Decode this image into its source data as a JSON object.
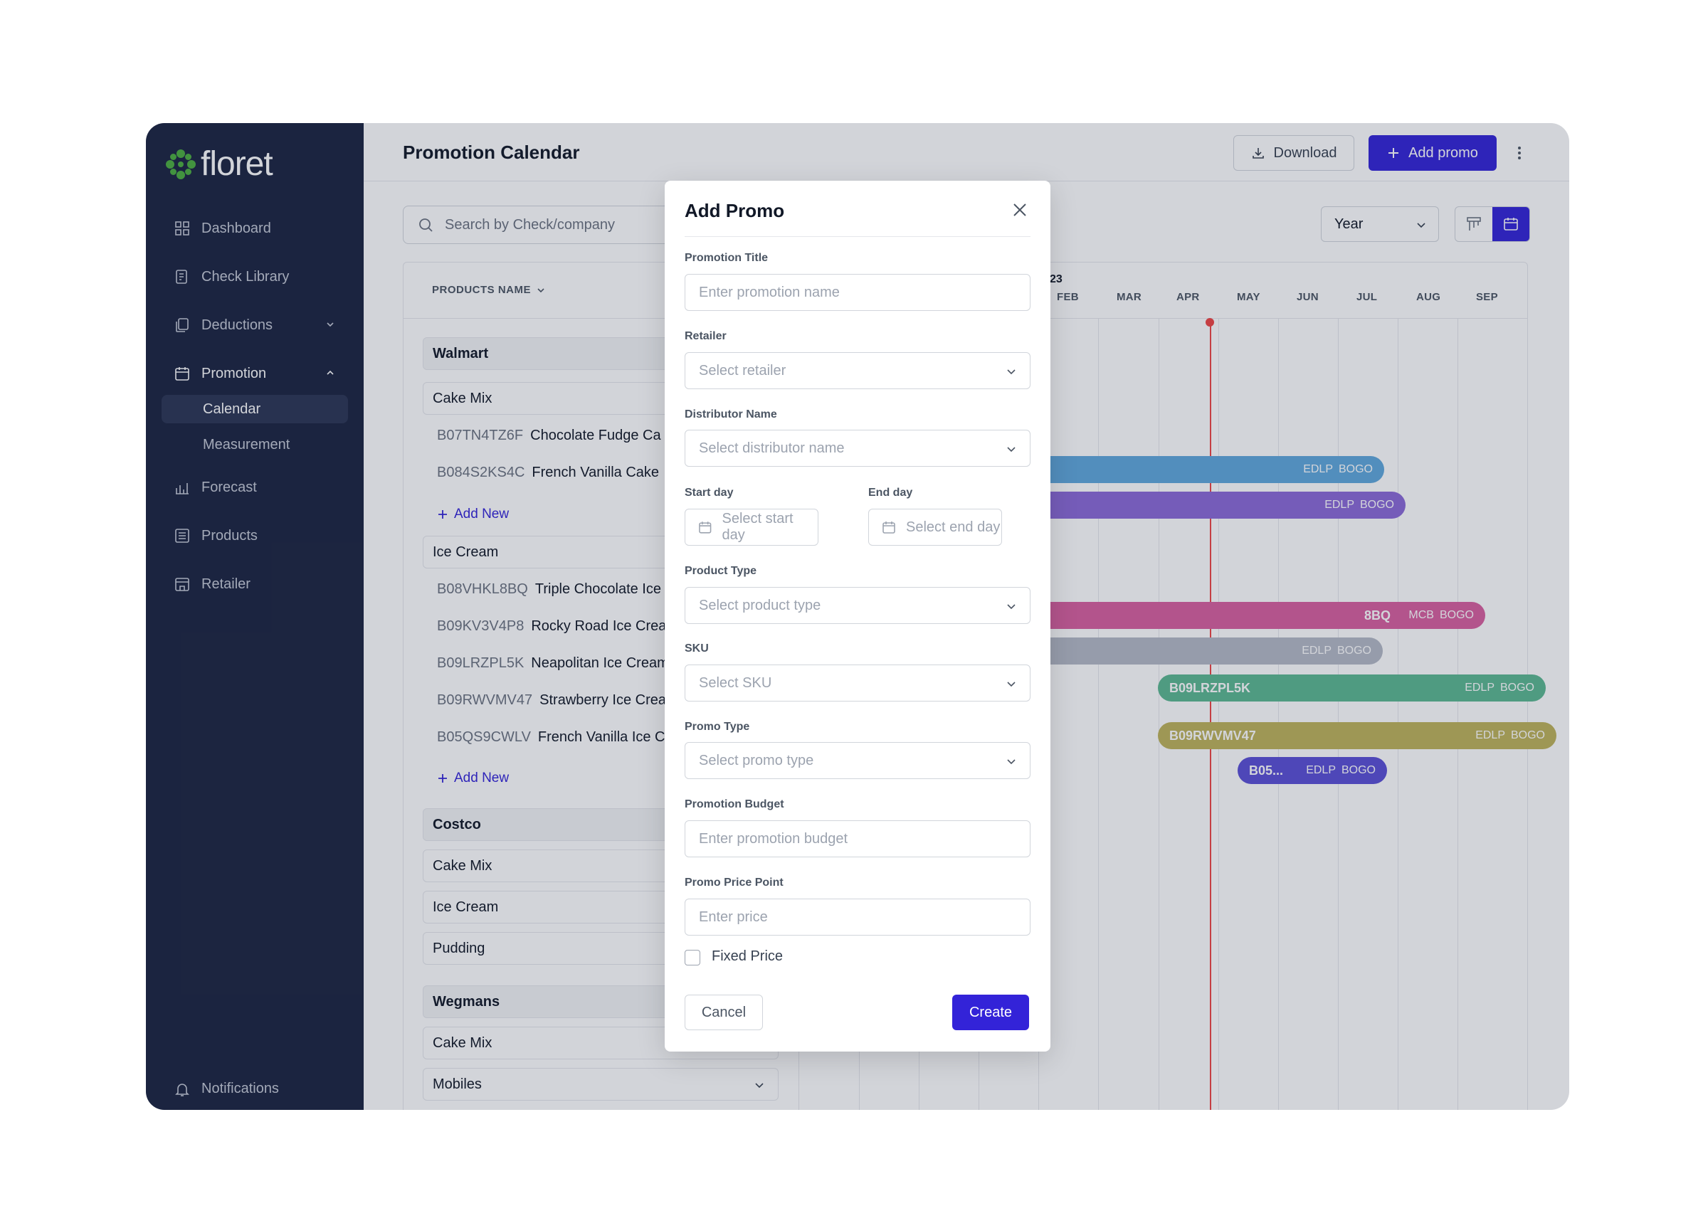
{
  "brand": {
    "name": "floret",
    "accent": "#3323d8",
    "sidebar_bg": "#1b2440"
  },
  "sidebar": {
    "items": [
      {
        "label": "Dashboard",
        "icon": "grid-icon"
      },
      {
        "label": "Check Library",
        "icon": "check-file-icon"
      },
      {
        "label": "Deductions",
        "icon": "copy-icon"
      },
      {
        "label": "Promotion",
        "icon": "calendar-icon"
      },
      {
        "label": "Forecast",
        "icon": "chart-icon"
      },
      {
        "label": "Products",
        "icon": "list-icon"
      },
      {
        "label": "Retailer",
        "icon": "store-icon"
      }
    ],
    "sub_items": [
      "Calendar",
      "Measurement"
    ],
    "notifications": "Notifications"
  },
  "header": {
    "title": "Promotion Calendar",
    "download": "Download",
    "add_promo": "Add promo"
  },
  "search": {
    "placeholder": "Search by Check/company"
  },
  "view": {
    "period": "Year"
  },
  "table": {
    "column_header": "PRODUCTS NAME",
    "rows": [
      {
        "type": "group",
        "label": "Walmart"
      },
      {
        "type": "category",
        "label": "Cake Mix"
      },
      {
        "type": "sku",
        "code": "B07TN4TZ6F",
        "name": "Chocolate Fudge Ca"
      },
      {
        "type": "sku",
        "code": "B084S2KS4C",
        "name": "French Vanilla Cake"
      },
      {
        "type": "add",
        "label": "Add New"
      },
      {
        "type": "category",
        "label": "Ice Cream"
      },
      {
        "type": "sku",
        "code": "B08VHKL8BQ",
        "name": "Triple Chocolate Ice"
      },
      {
        "type": "sku",
        "code": "B09KV3V4P8",
        "name": "Rocky Road Ice Crea"
      },
      {
        "type": "sku",
        "code": "B09LRZPL5K",
        "name": "Neapolitan Ice Cream"
      },
      {
        "type": "sku",
        "code": "B09RWVMV47",
        "name": "Strawberry Ice Crea"
      },
      {
        "type": "sku",
        "code": "B05QS9CWLV",
        "name": "French Vanilla Ice Cr"
      },
      {
        "type": "add",
        "label": "Add New"
      },
      {
        "type": "group",
        "label": "Costco"
      },
      {
        "type": "category",
        "label": "Cake Mix"
      },
      {
        "type": "category",
        "label": "Ice Cream"
      },
      {
        "type": "category",
        "label": "Pudding"
      },
      {
        "type": "group",
        "label": "Wegmans"
      },
      {
        "type": "category",
        "label": "Cake Mix"
      },
      {
        "type": "category",
        "label": "Mobiles"
      }
    ]
  },
  "timeline": {
    "year_label": "23",
    "months": [
      "FEB",
      "MAR",
      "APR",
      "MAY",
      "JUN",
      "JUL",
      "AUG",
      "SEP"
    ],
    "bars": [
      {
        "label": "",
        "tags": [
          "EDLP",
          "BOGO"
        ],
        "color": "#5fa8dc"
      },
      {
        "label": "",
        "tags": [
          "EDLP",
          "BOGO"
        ],
        "color": "#8b6ad8"
      },
      {
        "label": "8BQ",
        "tags": [
          "MCB",
          "BOGO"
        ],
        "color": "#d9609f"
      },
      {
        "label": "",
        "tags": [
          "EDLP",
          "BOGO"
        ],
        "color": "#b4b9c6"
      },
      {
        "label": "B09LRZPL5K",
        "tags": [
          "EDLP",
          "BOGO"
        ],
        "color": "#5cb891"
      },
      {
        "label": "B09RWVMV47",
        "tags": [
          "EDLP",
          "BOGO"
        ],
        "color": "#bfb35a"
      },
      {
        "label": "B05...",
        "tags": [
          "EDLP",
          "BOGO"
        ],
        "color": "#5b4fd6"
      }
    ]
  },
  "modal": {
    "title": "Add Promo",
    "fields": {
      "promotion_title": {
        "label": "Promotion Title",
        "placeholder": "Enter promotion name"
      },
      "retailer": {
        "label": "Retailer",
        "placeholder": "Select retailer"
      },
      "distributor": {
        "label": "Distributor Name",
        "placeholder": "Select distributor name"
      },
      "start_day": {
        "label": "Start day",
        "placeholder": "Select start day"
      },
      "end_day": {
        "label": "End day",
        "placeholder": "Select end day"
      },
      "product_type": {
        "label": "Product Type",
        "placeholder": "Select product type"
      },
      "sku": {
        "label": "SKU",
        "placeholder": "Select SKU"
      },
      "promo_type": {
        "label": "Promo Type",
        "placeholder": "Select promo type"
      },
      "budget": {
        "label": "Promotion Budget",
        "placeholder": "Enter promotion budget"
      },
      "price_point": {
        "label": "Promo Price Point",
        "placeholder": "Enter price"
      }
    },
    "fixed_price": "Fixed Price",
    "cancel": "Cancel",
    "create": "Create"
  }
}
